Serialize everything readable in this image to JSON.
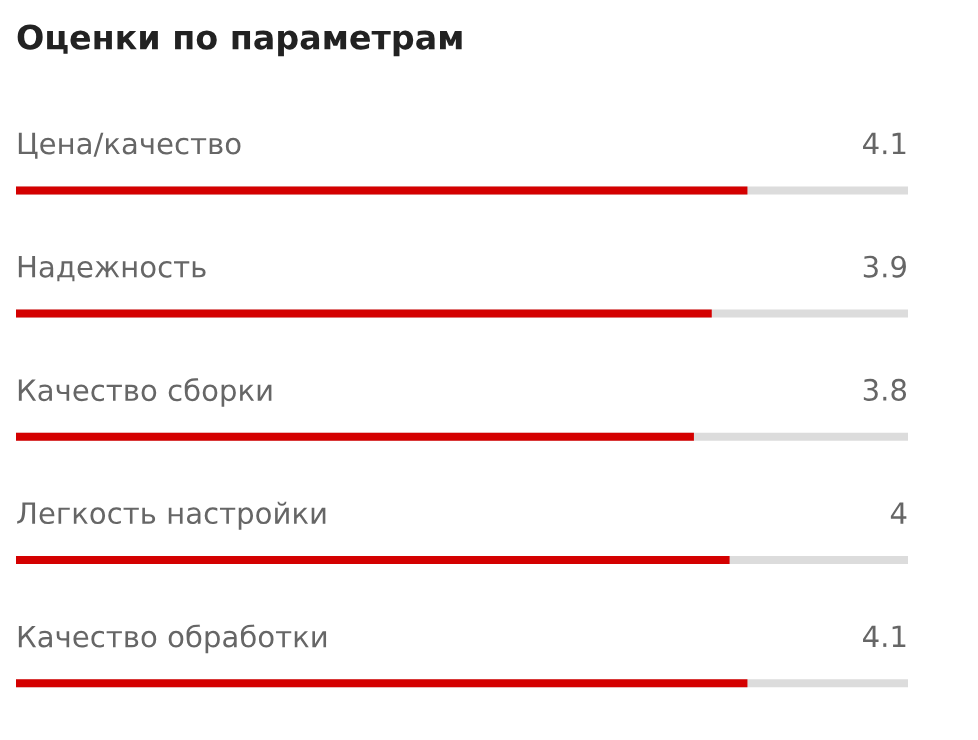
{
  "chart_data": {
    "type": "bar",
    "orientation": "horizontal",
    "title": "Оценки по параметрам",
    "categories": [
      "Цена/качество",
      "Надежность",
      "Качество сборки",
      "Легкость настройки",
      "Качество обработки"
    ],
    "series": [
      {
        "color": "#d40000",
        "values": [
          4.1,
          3.9,
          3.8,
          4,
          4.1
        ]
      }
    ],
    "data_labels": true,
    "xlim": [
      0,
      5
    ],
    "tick_labels": false
  }
}
